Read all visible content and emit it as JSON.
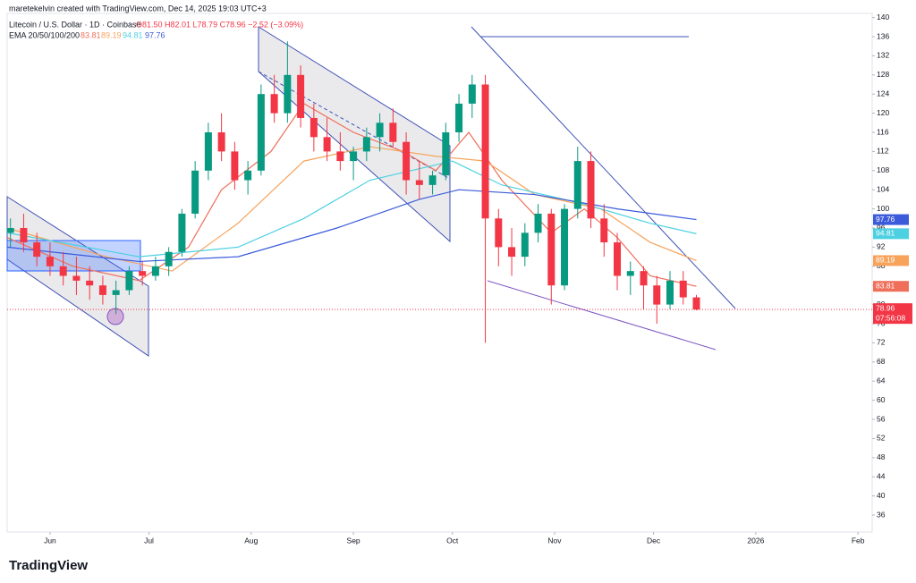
{
  "chart_data": {
    "type": "candlestick",
    "credit": "maretekelvin created with TradingView.com, Dec 14, 2025 19:03 UTC+3",
    "title": "Litecoin / U.S. Dollar · 1D · Coinbase",
    "ohlc_text": "O81.50 H82.01 L78.79 C78.96 −2.52 (−3.09%)",
    "ema_label": "EMA 20/50/100/200",
    "countdown": "07:56:08",
    "logo": "TradingView",
    "up_color": "#089981",
    "down_color": "#f23645",
    "xlim": [
      0,
      262.3
    ],
    "ylim": [
      32.45,
      140.86
    ],
    "xticks": [
      {
        "value": 13,
        "label": "Jun"
      },
      {
        "value": 43,
        "label": "Jul"
      },
      {
        "value": 74,
        "label": "Aug"
      },
      {
        "value": 105,
        "label": "Sep"
      },
      {
        "value": 135,
        "label": "Oct"
      },
      {
        "value": 166,
        "label": "Nov"
      },
      {
        "value": 196,
        "label": "Dec"
      },
      {
        "value": 227,
        "label": "2026"
      },
      {
        "value": 258,
        "label": "Feb"
      }
    ],
    "yticks": [
      36,
      40,
      44,
      48,
      52,
      56,
      60,
      64,
      68,
      72,
      76,
      80,
      84,
      88,
      92,
      96,
      100,
      104,
      108,
      112,
      116,
      120,
      124,
      128,
      132,
      136,
      140
    ],
    "x": [
      1,
      5,
      9,
      13,
      17,
      21,
      25,
      29,
      33,
      37,
      41,
      45,
      49,
      53,
      57,
      61,
      65,
      69,
      73,
      77,
      81,
      85,
      89,
      93,
      97,
      101,
      105,
      109,
      113,
      117,
      121,
      125,
      129,
      133,
      137,
      141,
      145,
      149,
      153,
      157,
      161,
      165,
      169,
      173,
      177,
      181,
      185,
      189,
      193,
      197,
      201,
      205,
      209
    ],
    "open": [
      95,
      96,
      93,
      90,
      88,
      86,
      85,
      84,
      82,
      83,
      87,
      86,
      88,
      91,
      99,
      108,
      116,
      112,
      106,
      108,
      124,
      120,
      128,
      119,
      115,
      112,
      110,
      112,
      115,
      118,
      114,
      106,
      105,
      107,
      116,
      122,
      126,
      98,
      92,
      90,
      95,
      99,
      84,
      100,
      110,
      98,
      93,
      86,
      87,
      84,
      80,
      85,
      81.5
    ],
    "high": [
      98,
      99,
      95,
      93,
      91,
      90,
      88,
      86,
      85,
      88,
      89,
      90,
      92,
      100,
      110,
      118,
      120,
      114,
      110,
      126,
      128,
      135,
      130,
      122,
      119,
      116,
      113,
      117,
      120,
      121,
      116,
      110,
      108,
      118,
      124,
      128,
      128,
      100,
      96,
      97,
      101,
      100,
      101,
      113,
      112,
      101,
      95,
      89,
      88,
      86,
      87,
      87,
      82.01
    ],
    "low": [
      92,
      91,
      88,
      86,
      84,
      82,
      81,
      80,
      78,
      82,
      84,
      85,
      86,
      90,
      98,
      106,
      110,
      104,
      103,
      107,
      118,
      118,
      117,
      112,
      110,
      108,
      106,
      110,
      112,
      113,
      103,
      102,
      103,
      106,
      114,
      119,
      72,
      88,
      86,
      88,
      93,
      80,
      83,
      98,
      96,
      90,
      83,
      82,
      79,
      76,
      79,
      80,
      78.79
    ],
    "close": [
      96,
      93,
      90,
      88,
      86,
      85,
      84,
      82,
      83,
      87,
      86,
      88,
      91,
      99,
      108,
      116,
      112,
      106,
      108,
      124,
      120,
      128,
      119,
      115,
      112,
      110,
      112,
      115,
      118,
      114,
      106,
      105,
      107,
      116,
      122,
      126,
      98,
      92,
      90,
      95,
      99,
      84,
      100,
      110,
      98,
      93,
      86,
      87,
      84,
      80,
      85,
      81.5,
      78.96
    ],
    "lines": [
      {
        "color": "#ef6f5b",
        "x": [
          0,
          20,
          40,
          55,
          65,
          80,
          90,
          105,
          120,
          130,
          140,
          150,
          165,
          175,
          185,
          195,
          209
        ],
        "values": [
          94,
          88,
          85,
          92,
          104,
          112,
          122,
          116,
          112,
          108,
          116,
          106,
          95,
          100,
          94,
          86,
          83.81
        ]
      },
      {
        "color": "#f7a35c",
        "x": [
          0,
          30,
          50,
          70,
          90,
          110,
          130,
          145,
          160,
          180,
          195,
          209
        ],
        "values": [
          96,
          90,
          87,
          97,
          110,
          113,
          111,
          110,
          103,
          100,
          93,
          89.19
        ]
      },
      {
        "color": "#4dd0e1",
        "x": [
          0,
          40,
          70,
          90,
          110,
          135,
          150,
          175,
          195,
          209
        ],
        "values": [
          95,
          90,
          92,
          98,
          106,
          110,
          105,
          101,
          97,
          94.81
        ]
      },
      {
        "color": "#3b5bdb",
        "x": [
          0,
          40,
          70,
          100,
          125,
          137,
          160,
          185,
          209
        ],
        "values": [
          92,
          89,
          90,
          96,
          102,
          104,
          103,
          100,
          97.76
        ]
      }
    ]
  }
}
